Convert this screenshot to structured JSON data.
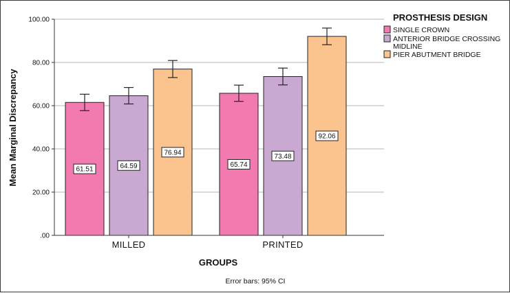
{
  "chart_data": {
    "type": "bar",
    "xlabel": "GROUPS",
    "ylabel": "Mean Marginal Discrepancy",
    "ylim": [
      0,
      100
    ],
    "yticks": [
      ".00",
      "20.00",
      "40.00",
      "60.00",
      "80.00",
      "100.00"
    ],
    "ytick_values": [
      0,
      20,
      40,
      60,
      80,
      100
    ],
    "grid": true,
    "categories": [
      "MILLED",
      "PRINTED"
    ],
    "legend_title": "PROSTHESIS DESIGN",
    "legend_position": "top-right",
    "series": [
      {
        "name": "SINGLE CROWN",
        "color": "#F27AAF",
        "values": [
          61.51,
          65.74
        ],
        "labels": [
          "61.51",
          "65.74"
        ],
        "ci_low": [
          57.7,
          62.0
        ],
        "ci_high": [
          65.3,
          69.5
        ]
      },
      {
        "name": "ANTERIOR BRIDGE CROSSING MIDLINE",
        "name_lines": [
          "ANTERIOR BRIDGE CROSSING",
          "MIDLINE"
        ],
        "color": "#C9A8D1",
        "values": [
          64.59,
          73.48
        ],
        "labels": [
          "64.59",
          "73.48"
        ],
        "ci_low": [
          60.8,
          69.6
        ],
        "ci_high": [
          68.4,
          77.4
        ]
      },
      {
        "name": "PIER ABUTMENT BRIDGE",
        "color": "#FBC38E",
        "values": [
          76.94,
          92.06
        ],
        "labels": [
          "76.94",
          "92.06"
        ],
        "ci_low": [
          73.0,
          88.2
        ],
        "ci_high": [
          80.9,
          95.9
        ]
      }
    ],
    "footnote": "Error bars: 95% CI"
  }
}
